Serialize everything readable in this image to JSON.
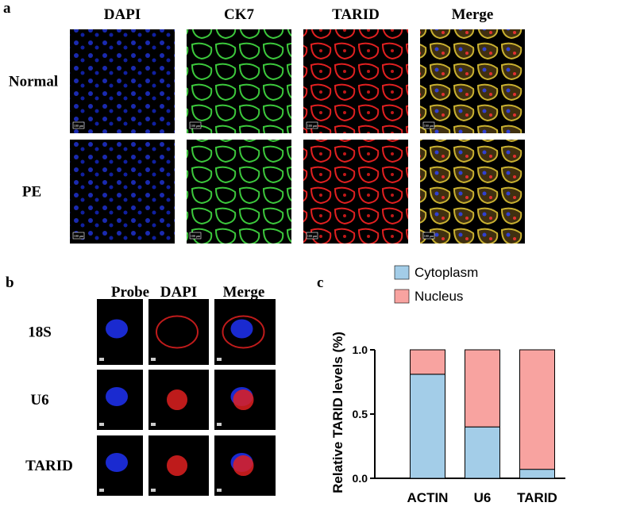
{
  "panel_a": {
    "label": "a",
    "columns": [
      "DAPI",
      "CK7",
      "TARID",
      "Merge"
    ],
    "rows": [
      "Normal",
      "PE"
    ],
    "scale_bar_label": "100 μm"
  },
  "panel_b": {
    "label": "b",
    "columns": [
      "Probe",
      "DAPI",
      "Merge"
    ],
    "rows": [
      "18S",
      "U6",
      "TARID"
    ]
  },
  "panel_c": {
    "label": "c",
    "chart_data": {
      "type": "stacked-bar",
      "y_label": "Relative TARID levels (%)",
      "categories": [
        "ACTIN",
        "U6",
        "TARID"
      ],
      "series": [
        {
          "name": "Cytoplasm",
          "color": "#a3cde8",
          "values": [
            0.81,
            0.4,
            0.07
          ]
        },
        {
          "name": "Nucleus",
          "color": "#f8a3a0",
          "values": [
            0.19,
            0.6,
            0.93
          ]
        }
      ],
      "ylim": [
        0,
        1
      ],
      "yticks": [
        {
          "value": 0,
          "label": "0.0"
        },
        {
          "value": 0.5,
          "label": "0.5"
        },
        {
          "value": 1,
          "label": "1.0"
        }
      ],
      "legend": "top-right"
    }
  }
}
